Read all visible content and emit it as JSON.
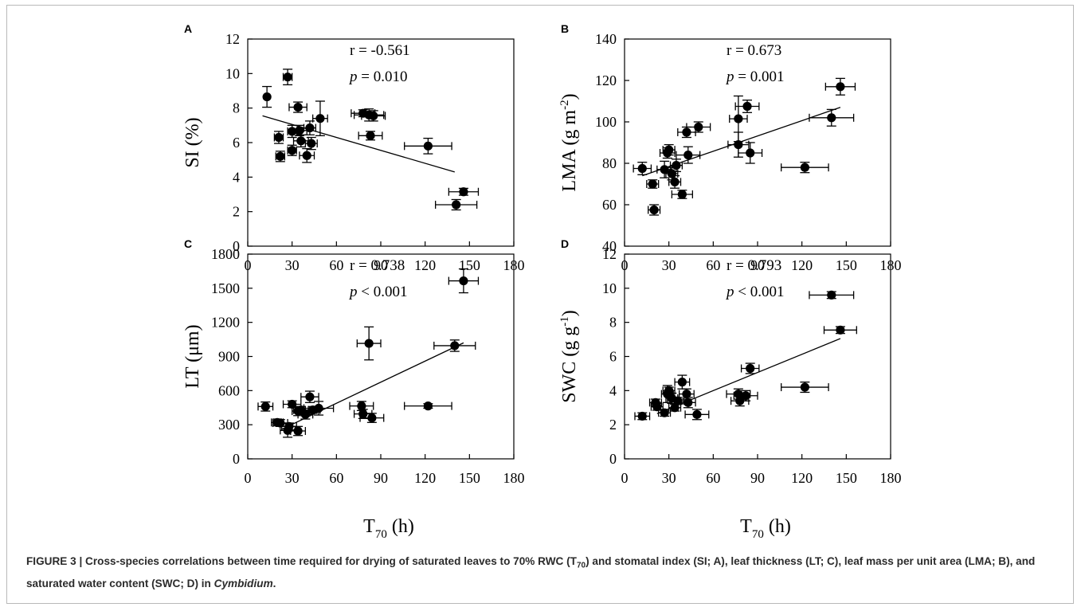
{
  "chart_data": [
    {
      "type": "scatter",
      "panel_label": "A",
      "xlim": [
        0,
        180
      ],
      "ylim": [
        0,
        12
      ],
      "xticks": [
        "0",
        "30",
        "60",
        "90",
        "120",
        "150",
        "180"
      ],
      "yticks": [
        "0",
        "2",
        "4",
        "6",
        "8",
        "10",
        "12"
      ],
      "ylabel": "SI (%)",
      "xlabel": "",
      "r_text": "r = -0.561",
      "p_sym": "p",
      "p_rest": " = 0.010",
      "trend": [
        [
          10,
          7.55
        ],
        [
          140,
          4.3
        ]
      ],
      "points": [
        {
          "x": 13,
          "y": 8.65,
          "xe": 0,
          "ye": 0.6
        },
        {
          "x": 21,
          "y": 6.3,
          "xe": 3,
          "ye": 0.35
        },
        {
          "x": 22,
          "y": 5.2,
          "xe": 3,
          "ye": 0.3
        },
        {
          "x": 27,
          "y": 9.8,
          "xe": 3,
          "ye": 0.45
        },
        {
          "x": 30,
          "y": 6.65,
          "xe": 3,
          "ye": 0.35
        },
        {
          "x": 30,
          "y": 5.55,
          "xe": 3,
          "ye": 0.3
        },
        {
          "x": 34,
          "y": 8.05,
          "xe": 6,
          "ye": 0.3
        },
        {
          "x": 35,
          "y": 6.7,
          "xe": 5,
          "ye": 0.3
        },
        {
          "x": 36,
          "y": 6.1,
          "xe": 5,
          "ye": 0.35
        },
        {
          "x": 40,
          "y": 5.25,
          "xe": 5,
          "ye": 0.4
        },
        {
          "x": 42,
          "y": 6.85,
          "xe": 4,
          "ye": 0.4
        },
        {
          "x": 43,
          "y": 5.95,
          "xe": 4,
          "ye": 0.35
        },
        {
          "x": 49,
          "y": 7.4,
          "xe": 5,
          "ye": 1.0
        },
        {
          "x": 78,
          "y": 7.7,
          "xe": 8,
          "ye": 0.2
        },
        {
          "x": 82,
          "y": 7.6,
          "xe": 10,
          "ye": 0.35
        },
        {
          "x": 85,
          "y": 7.55,
          "xe": 8,
          "ye": 0.3
        },
        {
          "x": 83,
          "y": 6.4,
          "xe": 8,
          "ye": 0.25
        },
        {
          "x": 122,
          "y": 5.8,
          "xe": 16,
          "ye": 0.45
        },
        {
          "x": 141,
          "y": 2.4,
          "xe": 14,
          "ye": 0.3
        },
        {
          "x": 146,
          "y": 3.15,
          "xe": 10,
          "ye": 0.2
        }
      ]
    },
    {
      "type": "scatter",
      "panel_label": "B",
      "xlim": [
        0,
        180
      ],
      "ylim": [
        40,
        140
      ],
      "xticks": [
        "0",
        "30",
        "60",
        "90",
        "120",
        "150",
        "180"
      ],
      "yticks": [
        "40",
        "60",
        "80",
        "100",
        "120",
        "140"
      ],
      "ylabel": "LMA (g m",
      "ylabel_sup": "-2",
      "ylabel_end": ")",
      "xlabel": "",
      "r_text": "r = 0.673",
      "p_sym": "p",
      "p_rest": " = 0.001",
      "trend": [
        [
          12,
          74
        ],
        [
          146,
          107
        ]
      ],
      "points": [
        {
          "x": 12,
          "y": 77.5,
          "xe": 6,
          "ye": 3
        },
        {
          "x": 19,
          "y": 70,
          "xe": 4,
          "ye": 2
        },
        {
          "x": 20,
          "y": 57.5,
          "xe": 4,
          "ye": 2.5
        },
        {
          "x": 27,
          "y": 77,
          "xe": 5,
          "ye": 4
        },
        {
          "x": 29,
          "y": 85,
          "xe": 5,
          "ye": 2.5
        },
        {
          "x": 30,
          "y": 86.5,
          "xe": 4,
          "ye": 2.5
        },
        {
          "x": 32,
          "y": 75,
          "xe": 4,
          "ye": 3
        },
        {
          "x": 34,
          "y": 71,
          "xe": 4,
          "ye": 3
        },
        {
          "x": 35,
          "y": 79,
          "xe": 4,
          "ye": 3
        },
        {
          "x": 39,
          "y": 65,
          "xe": 7,
          "ye": 2
        },
        {
          "x": 42,
          "y": 95,
          "xe": 6,
          "ye": 2.5
        },
        {
          "x": 43,
          "y": 84,
          "xe": 8,
          "ye": 4
        },
        {
          "x": 50,
          "y": 97.5,
          "xe": 8,
          "ye": 2.5
        },
        {
          "x": 77,
          "y": 101.5,
          "xe": 6,
          "ye": 11
        },
        {
          "x": 77,
          "y": 89,
          "xe": 7,
          "ye": 6
        },
        {
          "x": 83,
          "y": 107.5,
          "xe": 8,
          "ye": 3
        },
        {
          "x": 85,
          "y": 85,
          "xe": 8,
          "ye": 5
        },
        {
          "x": 122,
          "y": 78,
          "xe": 16,
          "ye": 2.5
        },
        {
          "x": 140,
          "y": 102,
          "xe": 15,
          "ye": 4
        },
        {
          "x": 146,
          "y": 117,
          "xe": 10,
          "ye": 4
        }
      ]
    },
    {
      "type": "scatter",
      "panel_label": "C",
      "xlim": [
        0,
        180
      ],
      "ylim": [
        0,
        1800
      ],
      "xticks": [
        "0",
        "30",
        "60",
        "90",
        "120",
        "150",
        "180"
      ],
      "yticks": [
        "0",
        "300",
        "600",
        "900",
        "1200",
        "1500",
        "1800"
      ],
      "ylabel": "LT (μm)",
      "xlabel": "T",
      "xlabel_sub": "70",
      "xlabel_end": " (h)",
      "r_text": "r = 0.738",
      "p_sym": "p",
      "p_rest": " < 0.001",
      "trend": [
        [
          23,
          260
        ],
        [
          146,
          1020
        ]
      ],
      "points": [
        {
          "x": 12,
          "y": 460,
          "xe": 5,
          "ye": 40
        },
        {
          "x": 20,
          "y": 320,
          "xe": 4,
          "ye": 30
        },
        {
          "x": 22,
          "y": 315,
          "xe": 5,
          "ye": 30
        },
        {
          "x": 27,
          "y": 250,
          "xe": 5,
          "ye": 60
        },
        {
          "x": 28,
          "y": 285,
          "xe": 5,
          "ye": 30
        },
        {
          "x": 30,
          "y": 480,
          "xe": 6,
          "ye": 30
        },
        {
          "x": 34,
          "y": 420,
          "xe": 4,
          "ye": 40
        },
        {
          "x": 34,
          "y": 245,
          "xe": 5,
          "ye": 40
        },
        {
          "x": 36,
          "y": 430,
          "xe": 5,
          "ye": 30
        },
        {
          "x": 39,
          "y": 390,
          "xe": 5,
          "ye": 40
        },
        {
          "x": 42,
          "y": 545,
          "xe": 6,
          "ye": 50
        },
        {
          "x": 44,
          "y": 430,
          "xe": 5,
          "ye": 30
        },
        {
          "x": 48,
          "y": 445,
          "xe": 10,
          "ye": 60
        },
        {
          "x": 77,
          "y": 465,
          "xe": 8,
          "ye": 40
        },
        {
          "x": 78,
          "y": 395,
          "xe": 6,
          "ye": 40
        },
        {
          "x": 84,
          "y": 360,
          "xe": 8,
          "ye": 40
        },
        {
          "x": 82,
          "y": 1015,
          "xe": 8,
          "ye": 145
        },
        {
          "x": 122,
          "y": 465,
          "xe": 16,
          "ye": 20
        },
        {
          "x": 140,
          "y": 995,
          "xe": 14,
          "ye": 50
        },
        {
          "x": 146,
          "y": 1565,
          "xe": 10,
          "ye": 105
        }
      ]
    },
    {
      "type": "scatter",
      "panel_label": "D",
      "xlim": [
        0,
        180
      ],
      "ylim": [
        0,
        12
      ],
      "xticks": [
        "0",
        "30",
        "60",
        "90",
        "120",
        "150",
        "180"
      ],
      "yticks": [
        "0",
        "2",
        "4",
        "6",
        "8",
        "10",
        "12"
      ],
      "ylabel": "SWC (g g",
      "ylabel_sup": "-1",
      "ylabel_end": ")",
      "xlabel": "T",
      "xlabel_sub": "70",
      "xlabel_end": " (h)",
      "r_text": "r = 0.793",
      "p_sym": "p",
      "p_rest": " < 0.001",
      "trend": [
        [
          22,
          2.65
        ],
        [
          146,
          7.05
        ]
      ],
      "points": [
        {
          "x": 12,
          "y": 2.5,
          "xe": 5,
          "ye": 0.2
        },
        {
          "x": 21,
          "y": 3.3,
          "xe": 4,
          "ye": 0.2
        },
        {
          "x": 22,
          "y": 3.05,
          "xe": 4,
          "ye": 0.2
        },
        {
          "x": 27,
          "y": 2.7,
          "xe": 4,
          "ye": 0.2
        },
        {
          "x": 29,
          "y": 3.8,
          "xe": 4,
          "ye": 0.5
        },
        {
          "x": 30,
          "y": 4.0,
          "xe": 4,
          "ye": 0.2
        },
        {
          "x": 32,
          "y": 3.55,
          "xe": 4,
          "ye": 0.3
        },
        {
          "x": 34,
          "y": 3.0,
          "xe": 4,
          "ye": 0.2
        },
        {
          "x": 36,
          "y": 3.4,
          "xe": 4,
          "ye": 0.2
        },
        {
          "x": 39,
          "y": 4.5,
          "xe": 5,
          "ye": 0.4
        },
        {
          "x": 42,
          "y": 3.8,
          "xe": 5,
          "ye": 0.3
        },
        {
          "x": 43,
          "y": 3.3,
          "xe": 5,
          "ye": 0.3
        },
        {
          "x": 49,
          "y": 2.6,
          "xe": 8,
          "ye": 0.3
        },
        {
          "x": 77,
          "y": 3.8,
          "xe": 8,
          "ye": 0.3
        },
        {
          "x": 78,
          "y": 3.4,
          "xe": 6,
          "ye": 0.3
        },
        {
          "x": 82,
          "y": 3.7,
          "xe": 8,
          "ye": 0.3
        },
        {
          "x": 85,
          "y": 5.3,
          "xe": 6,
          "ye": 0.3
        },
        {
          "x": 122,
          "y": 4.2,
          "xe": 16,
          "ye": 0.3
        },
        {
          "x": 140,
          "y": 9.6,
          "xe": 15,
          "ye": 0.2
        },
        {
          "x": 146,
          "y": 7.55,
          "xe": 11,
          "ye": 0.2
        }
      ]
    }
  ],
  "caption": {
    "prefix": "FIGURE 3 | Cross-species correlations between time required for drying of saturated leaves to 70% RWC (T",
    "sub": "70",
    "middle": ") and stomatal index (SI; A), leaf thickness (LT; C), leaf mass per unit area (LMA; B), and saturated water content (SWC; D) in ",
    "genus": "Cymbidium",
    "end": "."
  }
}
